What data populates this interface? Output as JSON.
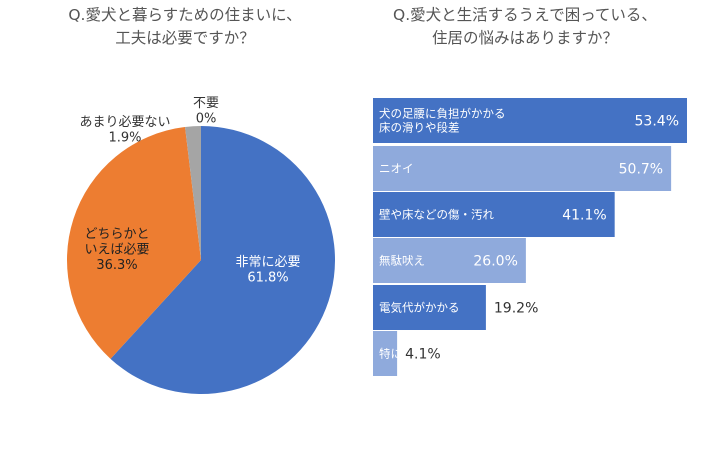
{
  "chart_data": [
    {
      "type": "pie",
      "title": "Q.愛犬と暮らすための住まいに、\n工夫は必要ですか？",
      "slices": [
        {
          "label": "非常に必要",
          "value": 61.8,
          "display": "61.8%",
          "color": "#4472C4"
        },
        {
          "label": "どちらかと\nいえば必要",
          "value": 36.3,
          "display": "36.3%",
          "color": "#ED7D31"
        },
        {
          "label": "あまり必要ない",
          "value": 1.9,
          "display": "1.9%",
          "color": "#A5A5A5"
        },
        {
          "label": "不要",
          "value": 0,
          "display": "0%",
          "color": "#7F7F7F"
        }
      ]
    },
    {
      "type": "bar",
      "orientation": "horizontal",
      "title": "Q.愛犬と生活するうえで困っている、\n住居の悩みはありますか？",
      "categories": [
        "犬の足腰に負担がかかる\n床の滑りや段差",
        "ニオイ",
        "壁や床などの傷・汚れ",
        "無駄吠え",
        "電気代がかかる",
        "特にない"
      ],
      "values": [
        53.4,
        50.7,
        41.1,
        26.0,
        19.2,
        4.1
      ],
      "labels": [
        "53.4%",
        "50.7%",
        "41.1%",
        "26.0%",
        "19.2%",
        "4.1%"
      ],
      "colors": [
        "#4472C4",
        "#8FAADC",
        "#4472C4",
        "#8FAADC",
        "#4472C4",
        "#8FAADC"
      ]
    }
  ]
}
